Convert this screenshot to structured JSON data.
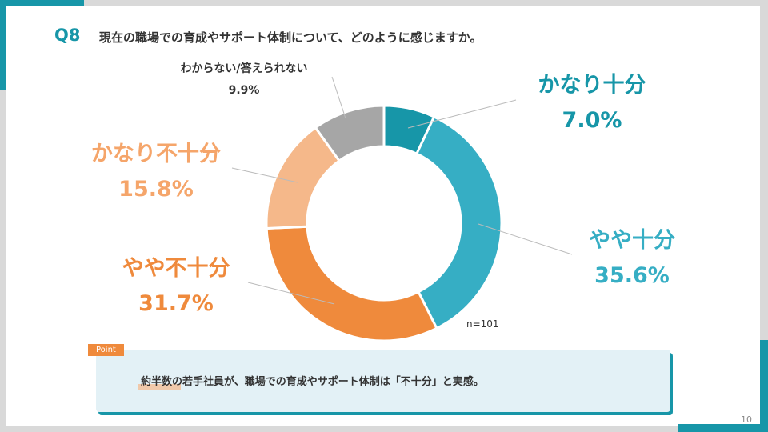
{
  "header": {
    "q_label": "Q8",
    "title": "現在の職場での育成やサポート体制について、どのように感じますか。"
  },
  "chart_data": {
    "type": "pie",
    "subtype": "donut",
    "title": "現在の職場での育成やサポート体制について、どのように感じますか。",
    "categories": [
      "かなり十分",
      "やや十分",
      "やや不十分",
      "かなり不十分",
      "わからない/答えられない"
    ],
    "values": [
      7.0,
      35.6,
      31.7,
      15.8,
      9.9
    ],
    "labels": [
      "7.0%",
      "35.6%",
      "31.7%",
      "15.8%",
      "9.9%"
    ],
    "colors": [
      "#1796a8",
      "#36aec4",
      "#ef8a3c",
      "#f5b88a",
      "#a6a6a6"
    ],
    "note": "n=101"
  },
  "point": {
    "tag": "Point",
    "text": "約半数の若手社員が、職場での育成やサポート体制は「不十分」と実感。"
  },
  "page_number": "10"
}
